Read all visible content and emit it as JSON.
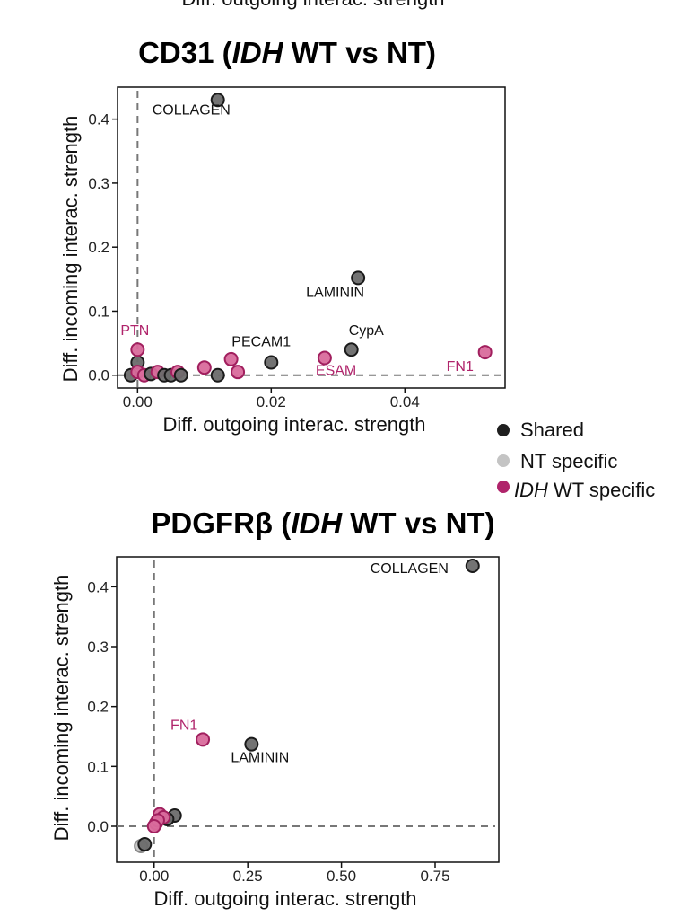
{
  "cut_off_text": "Diff. outgoing interac. strength",
  "legend": {
    "items": [
      {
        "key": "shared",
        "label": "Shared",
        "color": "#1f1f1f"
      },
      {
        "key": "nt",
        "label": "NT specific",
        "color": "#c4c4c4"
      },
      {
        "key": "idh",
        "label_italic": "IDH",
        "label_rest": " WT specific",
        "color": "#b0246b"
      }
    ]
  },
  "point_colors": {
    "shared": {
      "fill": "#6b6b6b",
      "stroke": "#1a1a1a"
    },
    "nt": {
      "fill": "#c4c4c4",
      "stroke": "#8a8a8a"
    },
    "idh": {
      "fill": "#d96b9c",
      "stroke": "#a11f5e"
    }
  },
  "label_colors": {
    "shared": "#111111",
    "idh": "#b0246b"
  },
  "chart_data": [
    {
      "type": "scatter",
      "title_prefix": "CD31 (",
      "title_italic": "IDH",
      "title_suffix": " WT vs NT)",
      "xlabel": "Diff. outgoing interac. strength",
      "ylabel": "Diff. incoming interac. strength",
      "xlim": [
        -0.003,
        0.055
      ],
      "ylim": [
        -0.02,
        0.45
      ],
      "xticks": [
        0.0,
        0.02,
        0.04
      ],
      "xtick_labels": [
        "0.00",
        "0.02",
        "0.04"
      ],
      "yticks": [
        0.0,
        0.1,
        0.2,
        0.3,
        0.4
      ],
      "ytick_labels": [
        "0.0",
        "0.1",
        "0.2",
        "0.3",
        "0.4"
      ],
      "grid": false,
      "reference_lines": {
        "x": 0,
        "y": 0
      },
      "points": [
        {
          "x": 0.012,
          "y": 0.43,
          "group": "shared",
          "label": "COLLAGEN"
        },
        {
          "x": 0.033,
          "y": 0.152,
          "group": "shared",
          "label": "LAMININ"
        },
        {
          "x": 0.032,
          "y": 0.04,
          "group": "shared",
          "label": "CypA"
        },
        {
          "x": 0.02,
          "y": 0.02,
          "group": "shared",
          "label": "PECAM1"
        },
        {
          "x": 0.052,
          "y": 0.036,
          "group": "idh",
          "label": "FN1"
        },
        {
          "x": 0.028,
          "y": 0.027,
          "group": "idh",
          "label": "ESAM"
        },
        {
          "x": 0.0,
          "y": 0.04,
          "group": "idh",
          "label": "PTN"
        },
        {
          "x": 0.0,
          "y": 0.02,
          "group": "shared"
        },
        {
          "x": -0.001,
          "y": 0.0,
          "group": "shared"
        },
        {
          "x": 0.0,
          "y": 0.005,
          "group": "idh"
        },
        {
          "x": 0.001,
          "y": 0.0,
          "group": "idh"
        },
        {
          "x": 0.002,
          "y": 0.002,
          "group": "shared"
        },
        {
          "x": 0.003,
          "y": 0.005,
          "group": "idh"
        },
        {
          "x": 0.004,
          "y": 0.0,
          "group": "shared"
        },
        {
          "x": 0.005,
          "y": 0.0,
          "group": "shared"
        },
        {
          "x": 0.006,
          "y": 0.005,
          "group": "idh"
        },
        {
          "x": 0.0065,
          "y": 0.0,
          "group": "shared"
        },
        {
          "x": 0.01,
          "y": 0.012,
          "group": "idh"
        },
        {
          "x": 0.012,
          "y": 0.0,
          "group": "shared"
        },
        {
          "x": 0.014,
          "y": 0.025,
          "group": "idh"
        },
        {
          "x": 0.015,
          "y": 0.005,
          "group": "idh"
        }
      ]
    },
    {
      "type": "scatter",
      "title_prefix": "PDGFRβ (",
      "title_italic": "IDH",
      "title_suffix": " WT vs NT)",
      "xlabel": "Diff. outgoing interac. strength",
      "ylabel": "Diff. incoming interac. strength",
      "xlim": [
        -0.1,
        0.92
      ],
      "ylim": [
        -0.06,
        0.45
      ],
      "xticks": [
        0.0,
        0.25,
        0.5,
        0.75
      ],
      "xtick_labels": [
        "0.00",
        "0.25",
        "0.50",
        "0.75"
      ],
      "yticks": [
        0.0,
        0.1,
        0.2,
        0.3,
        0.4
      ],
      "ytick_labels": [
        "0.0",
        "0.1",
        "0.2",
        "0.3",
        "0.4"
      ],
      "grid": false,
      "reference_lines": {
        "x": 0,
        "y": 0
      },
      "points": [
        {
          "x": 0.85,
          "y": 0.435,
          "group": "shared",
          "label": "COLLAGEN"
        },
        {
          "x": 0.26,
          "y": 0.137,
          "group": "shared",
          "label": "LAMININ"
        },
        {
          "x": 0.13,
          "y": 0.145,
          "group": "idh",
          "label": "FN1"
        },
        {
          "x": -0.035,
          "y": -0.033,
          "group": "nt"
        },
        {
          "x": -0.025,
          "y": -0.03,
          "group": "shared"
        },
        {
          "x": 0.055,
          "y": 0.018,
          "group": "shared"
        },
        {
          "x": 0.035,
          "y": 0.012,
          "group": "shared"
        },
        {
          "x": 0.015,
          "y": 0.02,
          "group": "idh"
        },
        {
          "x": 0.025,
          "y": 0.015,
          "group": "idh"
        },
        {
          "x": 0.005,
          "y": 0.005,
          "group": "idh"
        },
        {
          "x": 0.01,
          "y": 0.01,
          "group": "idh"
        },
        {
          "x": 0.0,
          "y": 0.0,
          "group": "idh"
        }
      ]
    }
  ]
}
